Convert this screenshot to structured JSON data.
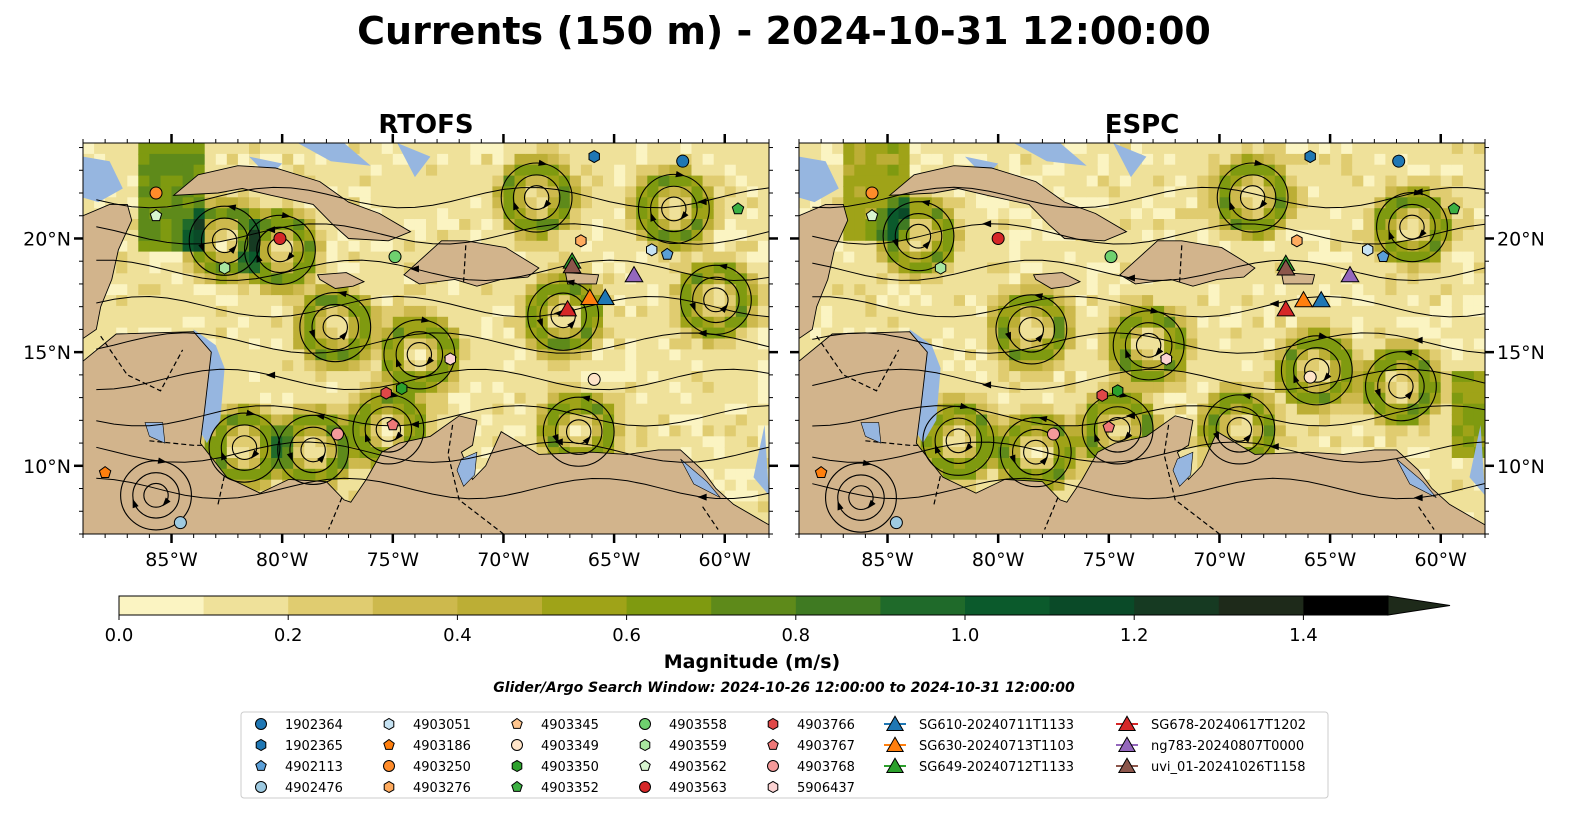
{
  "suptitle": "Currents (150 m) - 2024-10-31 12:00:00",
  "colors": {
    "ocean_fill": "#c3b35e",
    "land": "#d2b48c",
    "shallow_water": "#96b6e0",
    "streamline": "#000000",
    "cmap": [
      "#fbf4c2",
      "#efe19a",
      "#e0cc70",
      "#cdb94d",
      "#bcae35",
      "#9fa318",
      "#7f9a10",
      "#5e8a1a",
      "#3f7a22",
      "#1f6a2a",
      "#0b5a2c",
      "#0a4a28",
      "#163a22",
      "#1e2a1a"
    ]
  },
  "chart_data": [
    {
      "type": "heatmap",
      "title": "RTOFS",
      "xlim": [
        -89,
        -58
      ],
      "ylim": [
        7,
        24.2
      ],
      "xticks": [
        -85,
        -80,
        -75,
        -70,
        -65,
        -60
      ],
      "xticklabels": [
        "85°W",
        "80°W",
        "75°W",
        "70°W",
        "65°W",
        "60°W"
      ],
      "yticks": [
        10,
        15,
        20
      ],
      "yticklabels": [
        "10°N",
        "15°N",
        "20°N"
      ],
      "eddies": [
        {
          "lon": -82.6,
          "lat": 19.9,
          "sense": "ccw"
        },
        {
          "lon": -80.1,
          "lat": 19.5,
          "sense": "cw"
        },
        {
          "lon": -77.6,
          "lat": 16.1,
          "sense": "ccw"
        },
        {
          "lon": -81.7,
          "lat": 10.8,
          "sense": "cw"
        },
        {
          "lon": -78.6,
          "lat": 10.7,
          "sense": "ccw"
        },
        {
          "lon": -75.2,
          "lat": 11.6,
          "sense": "cw"
        },
        {
          "lon": -73.8,
          "lat": 14.9,
          "sense": "cw"
        },
        {
          "lon": -67.3,
          "lat": 16.6,
          "sense": "ccw"
        },
        {
          "lon": -62.3,
          "lat": 21.3,
          "sense": "cw"
        },
        {
          "lon": -60.4,
          "lat": 17.3,
          "sense": "ccw"
        },
        {
          "lon": -66.6,
          "lat": 11.5,
          "sense": "ccw"
        },
        {
          "lon": -85.7,
          "lat": 8.7,
          "sense": "cw"
        },
        {
          "lon": -68.5,
          "lat": 21.8,
          "sense": "cw"
        }
      ],
      "platforms": [
        {
          "id": "1902364",
          "lon": -61.9,
          "lat": 23.4
        },
        {
          "id": "1902365",
          "lon": -65.9,
          "lat": 23.6
        },
        {
          "id": "4902113",
          "lon": -62.6,
          "lat": 19.3
        },
        {
          "id": "4902476",
          "lon": -84.6,
          "lat": 7.5
        },
        {
          "id": "4903051",
          "lon": -63.3,
          "lat": 19.5
        },
        {
          "id": "4903186",
          "lon": -88.0,
          "lat": 9.7
        },
        {
          "id": "4903250",
          "lon": -85.7,
          "lat": 22.0
        },
        {
          "id": "4903276",
          "lon": -66.5,
          "lat": 19.9
        },
        {
          "id": "4903345",
          "lon": -72.4,
          "lat": 14.7
        },
        {
          "id": "4903349",
          "lon": -65.9,
          "lat": 13.8
        },
        {
          "id": "4903350",
          "lon": -74.6,
          "lat": 13.4
        },
        {
          "id": "4903352",
          "lon": -59.4,
          "lat": 21.3
        },
        {
          "id": "4903558",
          "lon": -74.9,
          "lat": 19.2
        },
        {
          "id": "4903559",
          "lon": -82.6,
          "lat": 18.7
        },
        {
          "id": "4903562",
          "lon": -85.7,
          "lat": 21.0
        },
        {
          "id": "4903563",
          "lon": -80.1,
          "lat": 20.0
        },
        {
          "id": "4903766",
          "lon": -75.3,
          "lat": 13.2
        },
        {
          "id": "4903767",
          "lon": -75.0,
          "lat": 11.8
        },
        {
          "id": "4903768",
          "lon": -77.5,
          "lat": 11.4
        },
        {
          "id": "5906437",
          "lon": -72.4,
          "lat": 14.7
        },
        {
          "id": "SG610-20240711T1133",
          "lon": -65.4,
          "lat": 17.4
        },
        {
          "id": "SG630-20240713T1103",
          "lon": -66.1,
          "lat": 17.4
        },
        {
          "id": "SG649-20240712T1133",
          "lon": -66.9,
          "lat": 19.0
        },
        {
          "id": "SG678-20240617T1202",
          "lon": -67.1,
          "lat": 16.9
        },
        {
          "id": "ng783-20240807T0000",
          "lon": -64.1,
          "lat": 18.4
        },
        {
          "id": "uvi_01-20241026T1158",
          "lon": -66.9,
          "lat": 18.8
        }
      ]
    },
    {
      "type": "heatmap",
      "title": "ESPC",
      "xlim": [
        -89,
        -58
      ],
      "ylim": [
        7,
        24.2
      ],
      "xticks": [
        -85,
        -80,
        -75,
        -70,
        -65,
        -60
      ],
      "xticklabels": [
        "85°W",
        "80°W",
        "75°W",
        "70°W",
        "65°W",
        "60°W"
      ],
      "yticks": [
        10,
        15,
        20
      ],
      "yticklabels": [
        "10°N",
        "15°N",
        "20°N"
      ],
      "eddies": [
        {
          "lon": -83.6,
          "lat": 20.1,
          "sense": "ccw"
        },
        {
          "lon": -78.5,
          "lat": 16.0,
          "sense": "ccw"
        },
        {
          "lon": -81.8,
          "lat": 11.1,
          "sense": "cw"
        },
        {
          "lon": -78.3,
          "lat": 10.6,
          "sense": "ccw"
        },
        {
          "lon": -74.6,
          "lat": 11.6,
          "sense": "cw"
        },
        {
          "lon": -73.2,
          "lat": 15.3,
          "sense": "cw"
        },
        {
          "lon": -65.6,
          "lat": 14.2,
          "sense": "cw"
        },
        {
          "lon": -69.1,
          "lat": 11.6,
          "sense": "ccw"
        },
        {
          "lon": -61.3,
          "lat": 20.5,
          "sense": "cw"
        },
        {
          "lon": -61.8,
          "lat": 13.5,
          "sense": "ccw"
        },
        {
          "lon": -86.2,
          "lat": 8.6,
          "sense": "cw"
        },
        {
          "lon": -68.5,
          "lat": 21.8,
          "sense": "cw"
        }
      ],
      "platforms": [
        {
          "id": "1902364",
          "lon": -61.9,
          "lat": 23.4
        },
        {
          "id": "1902365",
          "lon": -65.9,
          "lat": 23.6
        },
        {
          "id": "4902113",
          "lon": -62.6,
          "lat": 19.2
        },
        {
          "id": "4902476",
          "lon": -84.6,
          "lat": 7.5
        },
        {
          "id": "4903051",
          "lon": -63.3,
          "lat": 19.5
        },
        {
          "id": "4903186",
          "lon": -88.0,
          "lat": 9.7
        },
        {
          "id": "4903250",
          "lon": -85.7,
          "lat": 22.0
        },
        {
          "id": "4903276",
          "lon": -66.5,
          "lat": 19.9
        },
        {
          "id": "4903345",
          "lon": -72.4,
          "lat": 14.7
        },
        {
          "id": "4903349",
          "lon": -65.9,
          "lat": 13.9
        },
        {
          "id": "4903350",
          "lon": -74.6,
          "lat": 13.3
        },
        {
          "id": "4903352",
          "lon": -59.4,
          "lat": 21.3
        },
        {
          "id": "4903558",
          "lon": -74.9,
          "lat": 19.2
        },
        {
          "id": "4903559",
          "lon": -82.6,
          "lat": 18.7
        },
        {
          "id": "4903562",
          "lon": -85.7,
          "lat": 21.0
        },
        {
          "id": "4903563",
          "lon": -80.0,
          "lat": 20.0
        },
        {
          "id": "4903766",
          "lon": -75.3,
          "lat": 13.1
        },
        {
          "id": "4903767",
          "lon": -75.0,
          "lat": 11.7
        },
        {
          "id": "4903768",
          "lon": -77.5,
          "lat": 11.4
        },
        {
          "id": "5906437",
          "lon": -72.4,
          "lat": 14.7
        },
        {
          "id": "SG610-20240711T1133",
          "lon": -65.4,
          "lat": 17.3
        },
        {
          "id": "SG630-20240713T1103",
          "lon": -66.2,
          "lat": 17.3
        },
        {
          "id": "SG649-20240712T1133",
          "lon": -67.0,
          "lat": 18.9
        },
        {
          "id": "SG678-20240617T1202",
          "lon": -67.0,
          "lat": 16.9
        },
        {
          "id": "ng783-20240807T0000",
          "lon": -64.1,
          "lat": 18.4
        },
        {
          "id": "uvi_01-20241026T1158",
          "lon": -67.0,
          "lat": 18.7
        }
      ]
    }
  ],
  "colorbar": {
    "label": "Magnitude (m/s)",
    "range": [
      0.0,
      1.5
    ],
    "levels": [
      0,
      0.1,
      0.2,
      0.3,
      0.4,
      0.5,
      0.6,
      0.7,
      0.8,
      0.9,
      1.0,
      1.1,
      1.2,
      1.3,
      1.4,
      1.5
    ],
    "ticks": [
      0.0,
      0.2,
      0.4,
      0.6,
      0.8,
      1.0,
      1.2,
      1.4
    ],
    "ticklabels": [
      "0.0",
      "0.2",
      "0.4",
      "0.6",
      "0.8",
      "1.0",
      "1.2",
      "1.4"
    ],
    "extend": "max"
  },
  "search_window": "Glider/Argo Search Window: 2024-10-26 12:00:00 to 2024-10-31 12:00:00",
  "legend": {
    "columns": [
      [
        {
          "id": "1902364",
          "marker": "circle",
          "color": "#1f77b4"
        },
        {
          "id": "1902365",
          "marker": "hexagon",
          "color": "#1f77b4"
        },
        {
          "id": "4902113",
          "marker": "pentagon",
          "color": "#5a9fd8"
        },
        {
          "id": "4902476",
          "marker": "circle",
          "color": "#9ecae1"
        }
      ],
      [
        {
          "id": "4903051",
          "marker": "hexagon",
          "color": "#c6e2f2"
        },
        {
          "id": "4903186",
          "marker": "pentagon",
          "color": "#ff7f0e"
        },
        {
          "id": "4903250",
          "marker": "circle",
          "color": "#ff8c2a"
        },
        {
          "id": "4903276",
          "marker": "hexagon",
          "color": "#ffab5e"
        }
      ],
      [
        {
          "id": "4903345",
          "marker": "pentagon",
          "color": "#ffc68f"
        },
        {
          "id": "4903349",
          "marker": "circle",
          "color": "#ffe4c8"
        },
        {
          "id": "4903350",
          "marker": "hexagon",
          "color": "#2ca02c"
        },
        {
          "id": "4903352",
          "marker": "pentagon",
          "color": "#3cb043"
        }
      ],
      [
        {
          "id": "4903558",
          "marker": "circle",
          "color": "#6fd16f"
        },
        {
          "id": "4903559",
          "marker": "hexagon",
          "color": "#a8e6a0"
        },
        {
          "id": "4903562",
          "marker": "pentagon",
          "color": "#d8f5d0"
        },
        {
          "id": "4903563",
          "marker": "circle",
          "color": "#d62728"
        }
      ],
      [
        {
          "id": "4903766",
          "marker": "hexagon",
          "color": "#e04848"
        },
        {
          "id": "4903767",
          "marker": "pentagon",
          "color": "#ef7878"
        },
        {
          "id": "4903768",
          "marker": "circle",
          "color": "#f59a9a"
        },
        {
          "id": "5906437",
          "marker": "hexagon",
          "color": "#fcd3d3"
        }
      ],
      [
        {
          "id": "SG610-20240711T1133",
          "marker": "triangle",
          "color": "#1f77b4"
        },
        {
          "id": "SG630-20240713T1103",
          "marker": "triangle",
          "color": "#ff7f0e"
        },
        {
          "id": "SG649-20240712T1133",
          "marker": "triangle",
          "color": "#2ca02c"
        }
      ],
      [
        {
          "id": "SG678-20240617T1202",
          "marker": "triangle",
          "color": "#d62728"
        },
        {
          "id": "ng783-20240807T0000",
          "marker": "triangle",
          "color": "#9467bd"
        },
        {
          "id": "uvi_01-20241026T1158",
          "marker": "triangle",
          "color": "#8c564b"
        }
      ]
    ]
  }
}
